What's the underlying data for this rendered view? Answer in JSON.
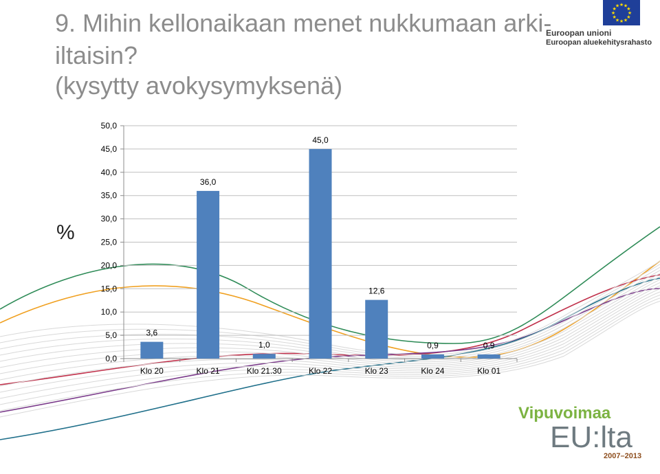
{
  "title": {
    "line1": "9. Mihin kellonaikaan menet nukkumaan arki-",
    "line2": "iltaisin?",
    "subtitle": "(kysytty avokysymyksenä)"
  },
  "eu_logo": {
    "line1": "Euroopan unioni",
    "line2": "Euroopan aluekehitysrahasto",
    "flag_color": "#1f3f99",
    "star_color": "#ffdd00"
  },
  "footer_logo": {
    "line1": "Vipuvoimaa",
    "line2": "EU:lta",
    "line3": "2007–2013"
  },
  "chart_data": {
    "type": "bar",
    "ylabel": "%",
    "categories": [
      "Klo 20",
      "Klo 21",
      "Klo 21.30",
      "Klo 22",
      "Klo 23",
      "Klo 24",
      "Klo 01"
    ],
    "values": [
      3.6,
      36.0,
      1.0,
      45.0,
      12.6,
      0.9,
      0.9
    ],
    "value_labels": [
      "3,6",
      "36,0",
      "1,0",
      "45,0",
      "12,6",
      "0,9",
      "0,9"
    ],
    "ylim": [
      0,
      50
    ],
    "yticks": [
      "0,0",
      "5,0",
      "10,0",
      "15,0",
      "20,0",
      "25,0",
      "30,0",
      "35,0",
      "40,0",
      "45,0",
      "50,0"
    ],
    "bar_color": "#4f81bd",
    "grid": true,
    "legend": "none"
  }
}
